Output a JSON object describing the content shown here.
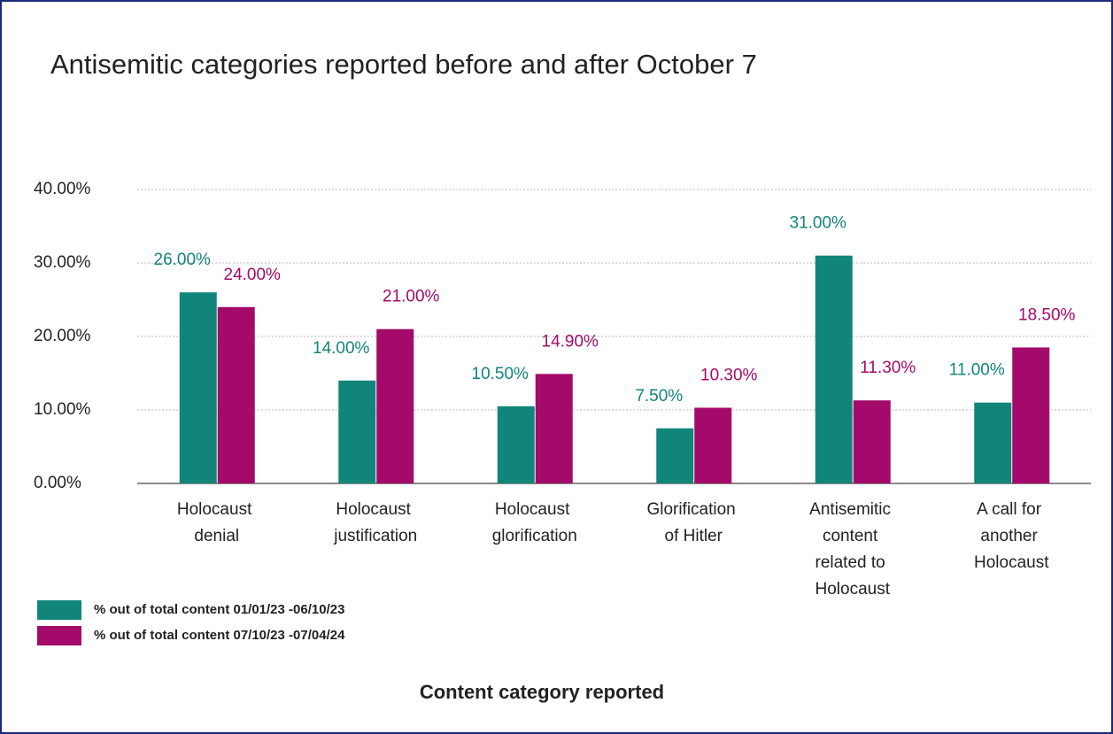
{
  "chart_data": {
    "type": "bar",
    "title": "Antisemitic categories reported before and after October 7",
    "x_label": "Content category reported",
    "categories": [
      "Holocaust denial",
      "Holocaust justification",
      "Holocaust glorification",
      "Glorification of Hitler",
      "Antisemitic content related to Holocaust",
      "A call for another Holocaust"
    ],
    "series": [
      {
        "name": "% out of total content 01/01/23 -06/10/23",
        "color": "#12857a",
        "values": [
          26,
          14,
          10.5,
          7.5,
          31,
          11
        ],
        "value_labels": [
          "26.00%",
          "14.00%",
          "10.50%",
          "7.50%",
          "31.00%",
          "11.00%"
        ]
      },
      {
        "name": "% out of total content 07/10/23 -07/04/24",
        "color": "#a30a6a",
        "values": [
          24,
          21,
          14.9,
          10.3,
          11.3,
          18.5
        ],
        "value_labels": [
          "24.00%",
          "21.00%",
          "14.90%",
          "10.30%",
          "11.30%",
          "18.50%"
        ]
      }
    ],
    "ylim": [
      0,
      40
    ],
    "yticks": [
      {
        "value": 0,
        "label": "0.00%"
      },
      {
        "value": 10,
        "label": "10.00%"
      },
      {
        "value": 20,
        "label": "20.00%"
      },
      {
        "value": 30,
        "label": "30.00%"
      },
      {
        "value": 40,
        "label": "40.00%"
      }
    ],
    "grid": true
  }
}
